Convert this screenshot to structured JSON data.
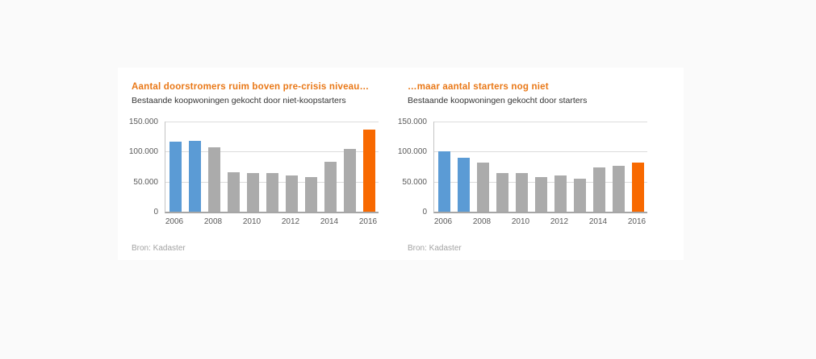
{
  "page": {
    "background": "#fafafa",
    "panel_background": "#ffffff"
  },
  "palette": {
    "blue": "#5B9BD5",
    "gray": "#ABABAB",
    "orange": "#F86900",
    "title_orange": "#E97817",
    "grid": "#dcdcdc",
    "axis": "#c4c4c4",
    "baseline": "#a6a6a6",
    "tick_text": "#595959",
    "subtitle_text": "#333333",
    "source_text": "#a3a3a3"
  },
  "chart_data": [
    {
      "type": "bar",
      "title": "Aantal doorstromers ruim boven pre-crisis niveau…",
      "subtitle": "Bestaande koopwoningen gekocht door niet-koopstarters",
      "source": "Bron: Kadaster",
      "categories": [
        2006,
        2007,
        2008,
        2009,
        2010,
        2011,
        2012,
        2013,
        2014,
        2015,
        2016
      ],
      "values": [
        116000,
        118000,
        107000,
        66000,
        65000,
        64000,
        60000,
        57000,
        83000,
        105000,
        137000
      ],
      "bar_colors": [
        "blue",
        "blue",
        "gray",
        "gray",
        "gray",
        "gray",
        "gray",
        "gray",
        "gray",
        "gray",
        "orange"
      ],
      "ylim": [
        0,
        150000
      ],
      "y_tick_labels_top_down": [
        "150.000",
        "100.000",
        "50.000",
        "0"
      ],
      "x_tick_labels": [
        "2006",
        "2008",
        "2010",
        "2012",
        "2014",
        "2016"
      ],
      "grid": true,
      "legend": false
    },
    {
      "type": "bar",
      "title": "…maar aantal starters nog niet",
      "subtitle": "Bestaande koopwoningen gekocht door starters",
      "source": "Bron: Kadaster",
      "categories": [
        2006,
        2007,
        2008,
        2009,
        2010,
        2011,
        2012,
        2013,
        2014,
        2015,
        2016
      ],
      "values": [
        100000,
        90000,
        82000,
        65000,
        64000,
        58000,
        60000,
        55000,
        74000,
        77000,
        82000
      ],
      "bar_colors": [
        "blue",
        "blue",
        "gray",
        "gray",
        "gray",
        "gray",
        "gray",
        "gray",
        "gray",
        "gray",
        "orange"
      ],
      "ylim": [
        0,
        150000
      ],
      "y_tick_labels_top_down": [
        "150.000",
        "100.000",
        "50.000",
        "0"
      ],
      "x_tick_labels": [
        "2006",
        "2008",
        "2010",
        "2012",
        "2014",
        "2016"
      ],
      "grid": true,
      "legend": false
    }
  ]
}
